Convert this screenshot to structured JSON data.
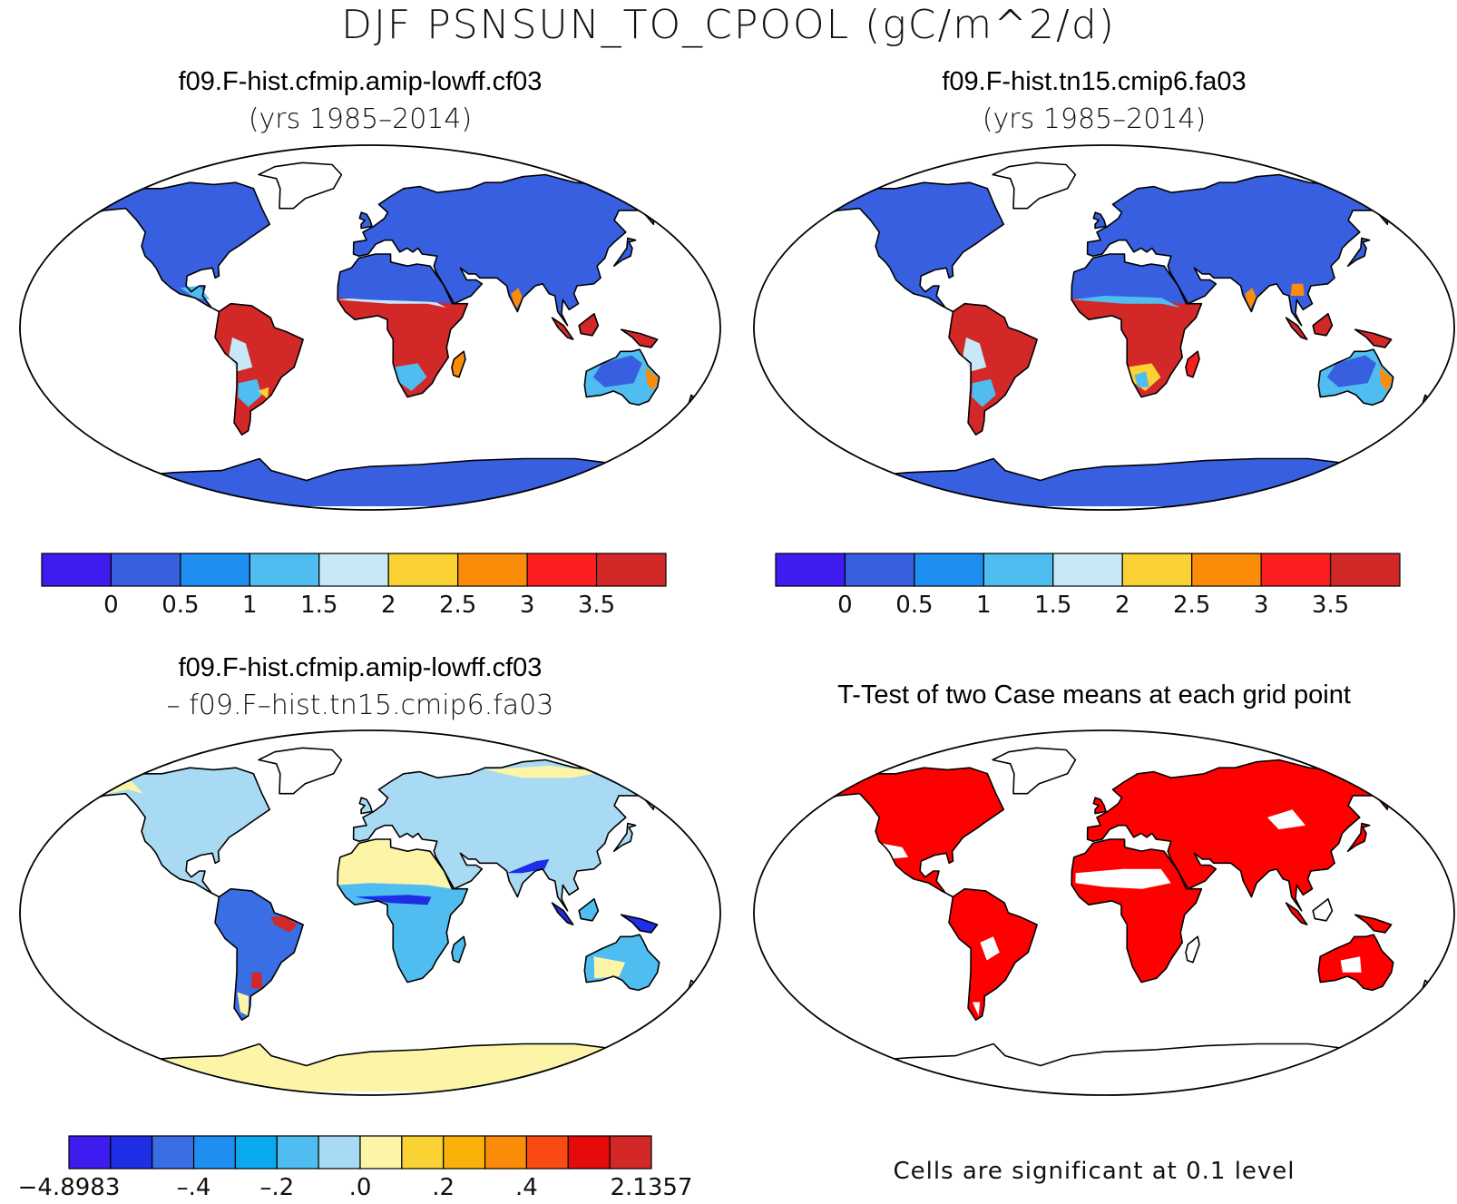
{
  "figure": {
    "title": "DJF PSNSUN_TO_CPOOL (gC/m^2/d)",
    "footnote": "Cells are significant at 0.1 level"
  },
  "panels": [
    {
      "id": "case1",
      "title": "f09.F-hist.cfmip.amip-lowff.cf03",
      "subtitle": "(yrs 1985–2014)"
    },
    {
      "id": "case2",
      "title": "f09.F-hist.tn15.cmip6.fa03",
      "subtitle": "(yrs 1985–2014)"
    },
    {
      "id": "diff",
      "title": "f09.F-hist.cfmip.amip-lowff.cf03",
      "subtitle": "– f09.F–hist.tn15.cmip6.fa03"
    },
    {
      "id": "ttest",
      "title": "T-Test of two Case means at each grid point",
      "subtitle": ""
    }
  ],
  "colorbars": {
    "main": {
      "colors": [
        "#3e1cf0",
        "#375fe0",
        "#1e8ef0",
        "#4fbdf0",
        "#c8e8f7",
        "#fad234",
        "#fa8c0a",
        "#fa1e1e",
        "#d22828"
      ],
      "labels": [
        "0",
        "0.5",
        "1",
        "1.5",
        "2",
        "2.5",
        "3",
        "3.5"
      ]
    },
    "diff": {
      "colors": [
        "#3e1cf0",
        "#1e2ee6",
        "#3a6ee4",
        "#1e8ef0",
        "#0aaaf0",
        "#4fbdf0",
        "#a8daf3",
        "#fcf5a8",
        "#fad234",
        "#fab20a",
        "#fa8c0a",
        "#fa4a14",
        "#e60a0a",
        "#d22828"
      ],
      "labels": [
        "−4.8983",
        "–.4",
        "–.2",
        ".0",
        ".2",
        ".4",
        "2.1357"
      ]
    }
  },
  "map_palette": {
    "ocean": "#ffffff",
    "outline": "#000000",
    "significant": "#ff0000"
  }
}
